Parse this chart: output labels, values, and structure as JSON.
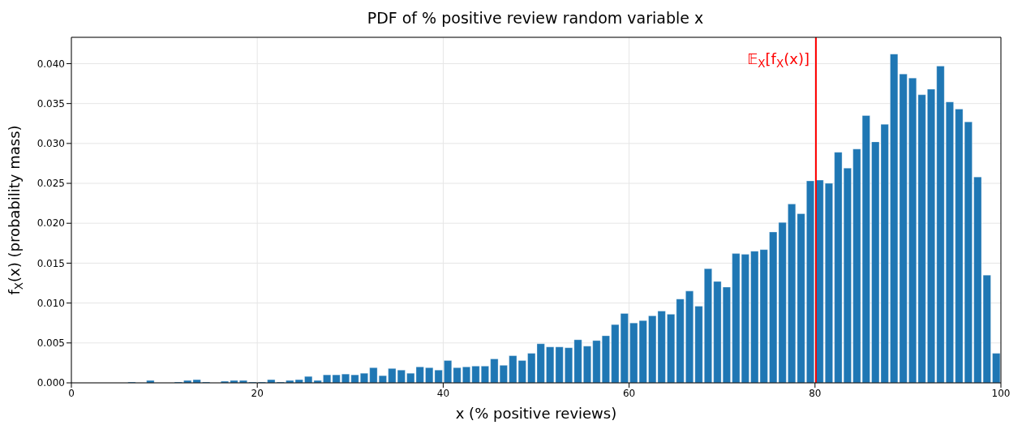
{
  "chart_data": {
    "type": "histogram",
    "title": "PDF of % positive review random variable x",
    "xlabel": "x (% positive reviews)",
    "ylabel": "f$_{X}$(x) (probability mass)",
    "bins": [
      0,
      1,
      2,
      3,
      4,
      5,
      6,
      7,
      8,
      9,
      10,
      11,
      12,
      13,
      14,
      15,
      16,
      17,
      18,
      19,
      20,
      21,
      22,
      23,
      24,
      25,
      26,
      27,
      28,
      29,
      30,
      31,
      32,
      33,
      34,
      35,
      36,
      37,
      38,
      39,
      40,
      41,
      42,
      43,
      44,
      45,
      46,
      47,
      48,
      49,
      50,
      51,
      52,
      53,
      54,
      55,
      56,
      57,
      58,
      59,
      60,
      61,
      62,
      63,
      64,
      65,
      66,
      67,
      68,
      69,
      70,
      71,
      72,
      73,
      74,
      75,
      76,
      77,
      78,
      79,
      80,
      81,
      82,
      83,
      84,
      85,
      86,
      87,
      88,
      89,
      90,
      91,
      92,
      93,
      94,
      95,
      96,
      97,
      98,
      99,
      100
    ],
    "values": [
      0,
      0,
      0,
      0,
      0,
      0,
      0.0001,
      0,
      0.0003,
      0,
      0,
      0.0001,
      0.0003,
      0.0004,
      0.0001,
      0,
      0.0002,
      0.0003,
      0.0003,
      0.0001,
      0.0001,
      0.0004,
      0.0001,
      0.0003,
      0.0004,
      0.0008,
      0.0003,
      0.001,
      0.001,
      0.0011,
      0.001,
      0.0012,
      0.0019,
      0.0009,
      0.0018,
      0.0016,
      0.0012,
      0.002,
      0.0019,
      0.0016,
      0.0028,
      0.0019,
      0.002,
      0.0021,
      0.0021,
      0.003,
      0.0022,
      0.0034,
      0.0028,
      0.0037,
      0.0049,
      0.0045,
      0.0045,
      0.0044,
      0.0054,
      0.0046,
      0.0053,
      0.0059,
      0.0073,
      0.0087,
      0.0075,
      0.0078,
      0.0084,
      0.009,
      0.0086,
      0.0105,
      0.0115,
      0.0096,
      0.0143,
      0.0127,
      0.012,
      0.0162,
      0.0161,
      0.0165,
      0.0167,
      0.0189,
      0.0201,
      0.0224,
      0.0212,
      0.0253,
      0.0254,
      0.025,
      0.0289,
      0.0269,
      0.0293,
      0.0335,
      0.0302,
      0.0324,
      0.0412,
      0.0387,
      0.0382,
      0.0361,
      0.0368,
      0.0397,
      0.0352,
      0.0343,
      0.0327,
      0.0258,
      0.0135,
      0.0037
    ],
    "color": "#1f77b4",
    "xlim": [
      0,
      100
    ],
    "xticks": [
      0,
      20,
      40,
      60,
      80,
      100
    ],
    "ylim": [
      0,
      0.0433
    ],
    "yticks": [
      {
        "value": 0,
        "label": "0.000"
      },
      {
        "value": 0.005,
        "label": "0.005"
      },
      {
        "value": 0.01,
        "label": "0.010"
      },
      {
        "value": 0.015,
        "label": "0.015"
      },
      {
        "value": 0.02,
        "label": "0.020"
      },
      {
        "value": 0.025,
        "label": "0.025"
      },
      {
        "value": 0.03,
        "label": "0.030"
      },
      {
        "value": 0.035,
        "label": "0.035"
      },
      {
        "value": 0.04,
        "label": "0.040"
      }
    ],
    "ref_lines": [
      {
        "axis": "x",
        "value": 80.1,
        "label": "𝔼$_{X}$[f$_{X}$(x)]",
        "color": "#ff0000"
      }
    ],
    "grid": true
  }
}
